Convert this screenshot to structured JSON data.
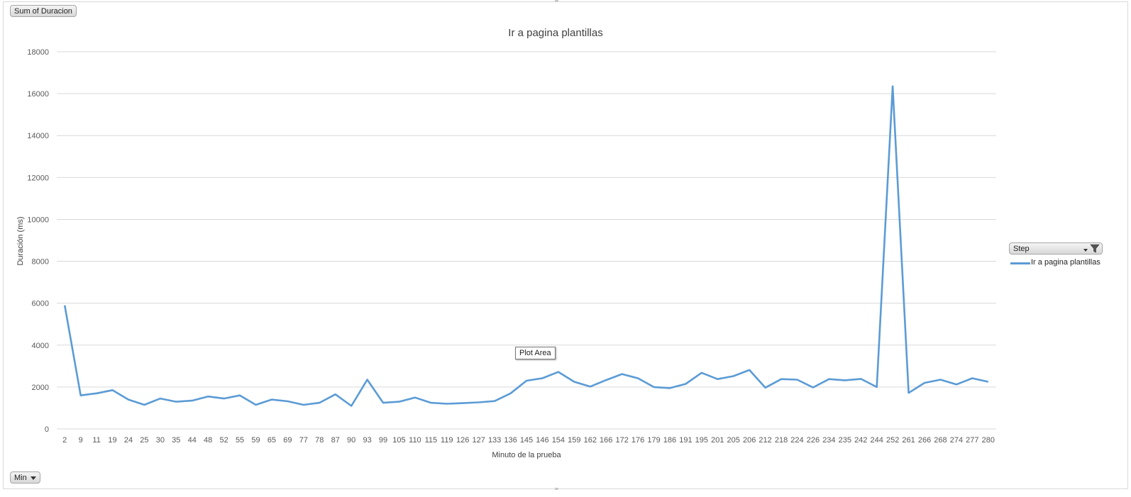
{
  "buttons": {
    "sum_field": "Sum of Duracion",
    "min_field": "Min",
    "legend_field": "Step"
  },
  "tooltip": "Plot Area",
  "colors": {
    "series": "#5b9bd5",
    "grid": "#d9d9d9",
    "text": "#595959"
  },
  "icons": {
    "filter": "funnel-icon",
    "dropdown": "chevron-down-icon"
  },
  "chart_data": {
    "type": "line",
    "title": "Ir a pagina plantillas",
    "xlabel": "Minuto de la prueba",
    "ylabel": "Duración (ms)",
    "ylim": [
      0,
      18000
    ],
    "yticks": [
      0,
      2000,
      4000,
      6000,
      8000,
      10000,
      12000,
      14000,
      16000,
      18000
    ],
    "grid": true,
    "legend_position": "right",
    "categories": [
      "2",
      "9",
      "11",
      "19",
      "24",
      "25",
      "30",
      "35",
      "44",
      "48",
      "52",
      "55",
      "59",
      "65",
      "69",
      "77",
      "78",
      "87",
      "90",
      "93",
      "99",
      "105",
      "110",
      "115",
      "119",
      "126",
      "127",
      "133",
      "136",
      "145",
      "146",
      "154",
      "159",
      "162",
      "166",
      "172",
      "176",
      "179",
      "186",
      "191",
      "195",
      "201",
      "205",
      "206",
      "212",
      "218",
      "224",
      "226",
      "234",
      "235",
      "242",
      "244",
      "252",
      "261",
      "266",
      "268",
      "274",
      "277",
      "280"
    ],
    "series": [
      {
        "name": "Ir a pagina plantillas",
        "values": [
          5900,
          1600,
          1700,
          1850,
          1400,
          1150,
          1450,
          1300,
          1350,
          1550,
          1450,
          1600,
          1150,
          1400,
          1320,
          1150,
          1250,
          1650,
          1100,
          2350,
          1250,
          1300,
          1500,
          1250,
          1200,
          1230,
          1270,
          1330,
          1700,
          2300,
          2420,
          2720,
          2250,
          2020,
          2330,
          2620,
          2420,
          2000,
          1950,
          2150,
          2680,
          2380,
          2520,
          2810,
          1970,
          2380,
          2350,
          1980,
          2380,
          2320,
          2390,
          2000,
          16350,
          1720,
          2200,
          2350,
          2120,
          2420,
          2250
        ]
      }
    ]
  }
}
